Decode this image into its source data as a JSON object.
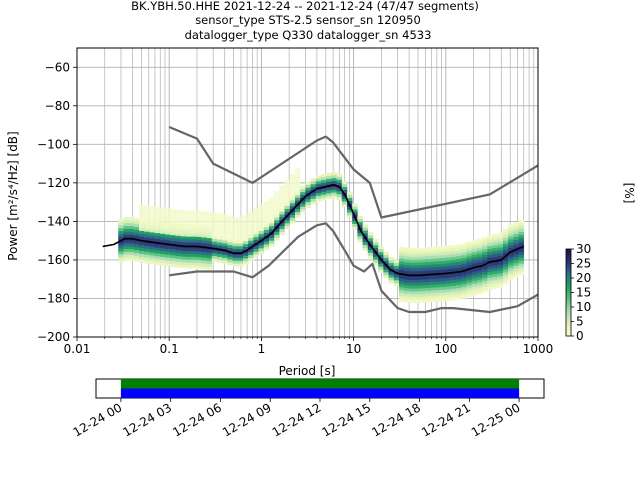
{
  "header": {
    "line1": "BK.YBH.50.HHE   2021-12-24 -- 2021-12-24  (47/47 segments)",
    "line2": "sensor_type STS-2.5 sensor_sn 120950",
    "line3": "datalogger_type Q330 datalogger_sn 4533"
  },
  "chart_data": [
    {
      "type": "heatmap",
      "xlabel": "Period [s]",
      "ylabel": "Power [m²/s⁴/Hz] [dB]",
      "x_scale": "log",
      "xlim": [
        0.01,
        1000
      ],
      "ylim": [
        -200,
        -50
      ],
      "x_ticks": [
        "0.01",
        "0.1",
        "1",
        "10",
        "100",
        "1000"
      ],
      "y_ticks": [
        "−60",
        "−80",
        "−100",
        "−120",
        "−140",
        "−160",
        "−180",
        "−200"
      ],
      "grid": true,
      "colorbar": {
        "label": "[%]",
        "ticks": [
          "0",
          "5",
          "10",
          "15",
          "20",
          "25",
          "30"
        ],
        "range": [
          0,
          30
        ],
        "colors": [
          "#ffffd9",
          "#e1f2b4",
          "#a8dcb6",
          "#55c27b",
          "#1f9f63",
          "#2d6f89",
          "#2b2e73",
          "#24104a"
        ]
      },
      "series": [
        {
          "name": "",
          "color": "#000000",
          "x": [
            0.019,
            0.025,
            0.03,
            0.033,
            0.04,
            0.05,
            0.07,
            0.1,
            0.15,
            0.2,
            0.3,
            0.4,
            0.5,
            0.6,
            0.7,
            0.8,
            1.0,
            1.3,
            1.6,
            2.0,
            2.5,
            3.0,
            4.0,
            5.0,
            6.0,
            7.0,
            8.0,
            10,
            12,
            15,
            20,
            25,
            30,
            40,
            50,
            70,
            100,
            150,
            200,
            250,
            300,
            400,
            500,
            700
          ],
          "y": [
            -153,
            -152,
            -150,
            -149,
            -149,
            -150,
            -151,
            -152,
            -153,
            -153,
            -154,
            -155,
            -156.5,
            -156.5,
            -155,
            -153,
            -150,
            -146,
            -141,
            -136,
            -131,
            -127,
            -123,
            -122,
            -121,
            -122,
            -126,
            -136,
            -145,
            -152,
            -160,
            -165,
            -167,
            -168,
            -168,
            -167.5,
            -167,
            -166,
            -164,
            -163,
            -161,
            -160,
            -156,
            -153
          ]
        },
        {
          "name": "",
          "color": "#666666",
          "x": [
            0.1,
            0.2,
            0.3,
            0.8,
            4,
            5,
            6,
            10,
            15,
            20,
            300,
            1000
          ],
          "y": [
            -91,
            -97,
            -110,
            -120,
            -98,
            -96,
            -99,
            -113,
            -120,
            -138,
            -126,
            -111
          ]
        },
        {
          "name": "",
          "color": "#666666",
          "x": [
            0.1,
            0.2,
            0.5,
            0.8,
            1.2,
            2.5,
            4,
            5,
            6,
            8,
            10,
            13,
            16,
            20,
            30,
            40,
            60,
            90,
            120,
            300,
            600,
            1000
          ],
          "y": [
            -168,
            -166,
            -166,
            -169,
            -163,
            -148,
            -142,
            -141,
            -145,
            -155,
            -163,
            -166,
            -162,
            -176,
            -185,
            -187,
            -187,
            -185,
            -185,
            -187,
            -184,
            -178
          ]
        }
      ]
    },
    {
      "type": "timeline",
      "x_ticks": [
        "12-24 00",
        "12-24 03",
        "12-24 06",
        "12-24 09",
        "12-24 12",
        "12-24 15",
        "12-24 18",
        "12-24 21",
        "12-25 00"
      ],
      "xlim_hours": [
        -1.5,
        25.5
      ],
      "bands": [
        {
          "color": "#008000",
          "start_hours": 0,
          "end_hours": 24
        },
        {
          "color": "#0000ff",
          "start_hours": 0,
          "end_hours": 24
        }
      ]
    }
  ]
}
